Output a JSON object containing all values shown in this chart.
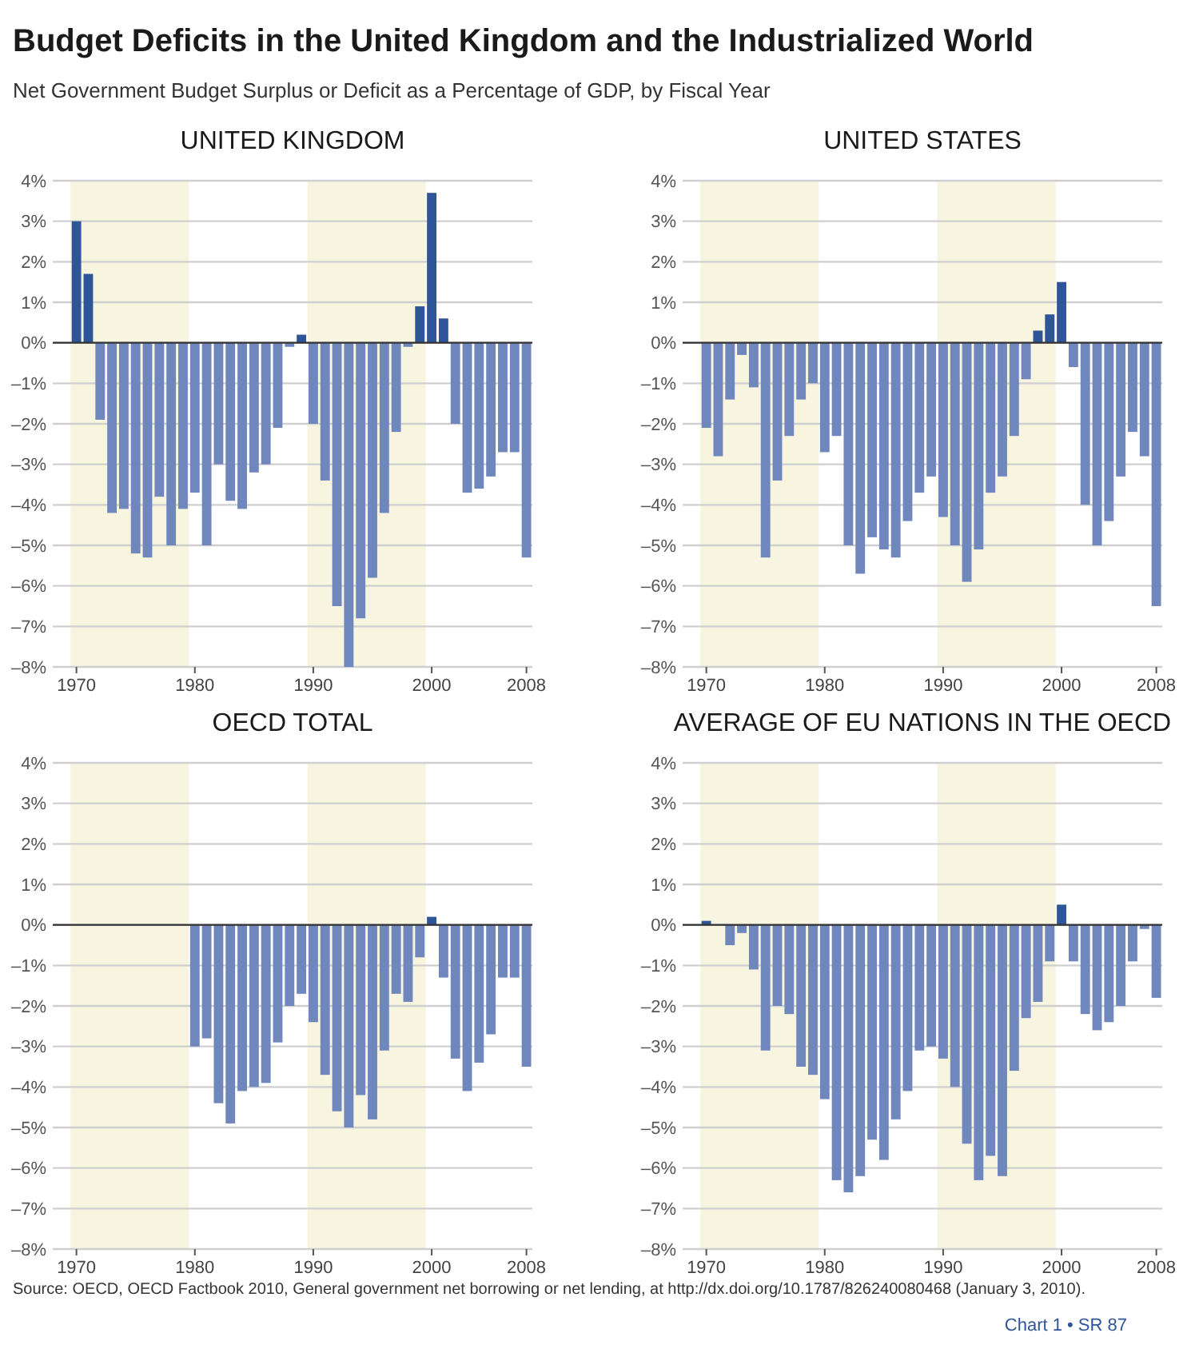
{
  "chart_data": [
    {
      "type": "other",
      "title": "Budget Deficits in the United Kingdom and the Industrialized World",
      "subtitle": "Net Government Budget Surplus or Deficit as a Percentage of GDP, by Fiscal Year",
      "annotations": [
        "Source: OECD, OECD Factbook 2010, General government net borrowing or net lending, at http://dx.doi.org/10.1787/826240080468 (January 3, 2010).",
        "Chart 1 • SR 87"
      ]
    },
    {
      "type": "bar",
      "title": "UNITED KINGDOM",
      "x": [
        1970,
        1971,
        1972,
        1973,
        1974,
        1975,
        1976,
        1977,
        1978,
        1979,
        1980,
        1981,
        1982,
        1983,
        1984,
        1985,
        1986,
        1987,
        1988,
        1989,
        1990,
        1991,
        1992,
        1993,
        1994,
        1995,
        1996,
        1997,
        1998,
        1999,
        2000,
        2001,
        2002,
        2003,
        2004,
        2005,
        2006,
        2007,
        2008
      ],
      "values": [
        3.0,
        1.7,
        -1.9,
        -4.2,
        -4.1,
        -5.2,
        -5.3,
        -3.8,
        -5.0,
        -4.1,
        -3.7,
        -5.0,
        -3.0,
        -3.9,
        -4.1,
        -3.2,
        -3.0,
        -2.1,
        -0.1,
        0.2,
        -2.0,
        -3.4,
        -6.5,
        -8.0,
        -6.8,
        -5.8,
        -4.2,
        -2.2,
        -0.1,
        0.9,
        3.7,
        0.6,
        -2.0,
        -3.7,
        -3.6,
        -3.3,
        -2.7,
        -2.7,
        -5.3
      ],
      "colors": [
        "#2d5597",
        "#2d5597",
        "#6f87bd",
        "#6f87bd",
        "#6f87bd",
        "#6f87bd",
        "#6f87bd",
        "#6f87bd",
        "#6f87bd",
        "#6f87bd",
        "#6f87bd",
        "#6f87bd",
        "#6f87bd",
        "#6f87bd",
        "#6f87bd",
        "#6f87bd",
        "#6f87bd",
        "#6f87bd",
        "#6f87bd",
        "#2d5597",
        "#6f87bd",
        "#6f87bd",
        "#6f87bd",
        "#6f87bd",
        "#6f87bd",
        "#6f87bd",
        "#6f87bd",
        "#6f87bd",
        "#6f87bd",
        "#2d5597",
        "#2d5597",
        "#2d5597",
        "#6f87bd",
        "#6f87bd",
        "#6f87bd",
        "#6f87bd",
        "#6f87bd",
        "#6f87bd",
        "#6f87bd"
      ],
      "xlim": [
        1968,
        2008.5
      ],
      "xticks": [
        1970,
        1980,
        1990,
        2000,
        2008
      ],
      "ylim": [
        -8,
        4
      ],
      "yticks": [
        {
          "value": 4,
          "label": "4%"
        },
        {
          "value": 3,
          "label": "3%"
        },
        {
          "value": 2,
          "label": "2%"
        },
        {
          "value": 1,
          "label": "1%"
        },
        {
          "value": 0,
          "label": "0%"
        },
        {
          "value": -1,
          "label": "–1%"
        },
        {
          "value": -2,
          "label": "–2%"
        },
        {
          "value": -3,
          "label": "–3%"
        },
        {
          "value": -4,
          "label": "–4%"
        },
        {
          "value": -5,
          "label": "–5%"
        },
        {
          "value": -6,
          "label": "–6%"
        },
        {
          "value": -7,
          "label": "–7%"
        },
        {
          "value": -8,
          "label": "–8%"
        }
      ],
      "bands": [
        {
          "axis": "x",
          "from": 1969.5,
          "to": 1979.5,
          "color": "#f7f4df"
        },
        {
          "axis": "x",
          "from": 1989.5,
          "to": 1999.5,
          "color": "#f7f4df"
        }
      ],
      "grid": "y"
    },
    {
      "type": "bar",
      "title": "UNITED STATES",
      "x": [
        1970,
        1971,
        1972,
        1973,
        1974,
        1975,
        1976,
        1977,
        1978,
        1979,
        1980,
        1981,
        1982,
        1983,
        1984,
        1985,
        1986,
        1987,
        1988,
        1989,
        1990,
        1991,
        1992,
        1993,
        1994,
        1995,
        1996,
        1997,
        1998,
        1999,
        2000,
        2001,
        2002,
        2003,
        2004,
        2005,
        2006,
        2007,
        2008
      ],
      "values": [
        -2.1,
        -2.8,
        -1.4,
        -0.3,
        -1.1,
        -5.3,
        -3.4,
        -2.3,
        -1.4,
        -1.0,
        -2.7,
        -2.3,
        -5.0,
        -5.7,
        -4.8,
        -5.1,
        -5.3,
        -4.4,
        -3.7,
        -3.3,
        -4.3,
        -5.0,
        -5.9,
        -5.1,
        -3.7,
        -3.3,
        -2.3,
        -0.9,
        0.3,
        0.7,
        1.5,
        -0.6,
        -4.0,
        -5.0,
        -4.4,
        -3.3,
        -2.2,
        -2.8,
        -6.5
      ],
      "colors": [
        "#6f87bd",
        "#6f87bd",
        "#6f87bd",
        "#6f87bd",
        "#6f87bd",
        "#6f87bd",
        "#6f87bd",
        "#6f87bd",
        "#6f87bd",
        "#6f87bd",
        "#6f87bd",
        "#6f87bd",
        "#6f87bd",
        "#6f87bd",
        "#6f87bd",
        "#6f87bd",
        "#6f87bd",
        "#6f87bd",
        "#6f87bd",
        "#6f87bd",
        "#6f87bd",
        "#6f87bd",
        "#6f87bd",
        "#6f87bd",
        "#6f87bd",
        "#6f87bd",
        "#6f87bd",
        "#6f87bd",
        "#2d5597",
        "#2d5597",
        "#2d5597",
        "#6f87bd",
        "#6f87bd",
        "#6f87bd",
        "#6f87bd",
        "#6f87bd",
        "#6f87bd",
        "#6f87bd",
        "#6f87bd"
      ],
      "xlim": [
        1968,
        2008.5
      ],
      "xticks": [
        1970,
        1980,
        1990,
        2000,
        2008
      ],
      "ylim": [
        -8,
        4
      ],
      "yticks": [
        {
          "value": 4,
          "label": "4%"
        },
        {
          "value": 3,
          "label": "3%"
        },
        {
          "value": 2,
          "label": "2%"
        },
        {
          "value": 1,
          "label": "1%"
        },
        {
          "value": 0,
          "label": "0%"
        },
        {
          "value": -1,
          "label": "–1%"
        },
        {
          "value": -2,
          "label": "–2%"
        },
        {
          "value": -3,
          "label": "–3%"
        },
        {
          "value": -4,
          "label": "–4%"
        },
        {
          "value": -5,
          "label": "–5%"
        },
        {
          "value": -6,
          "label": "–6%"
        },
        {
          "value": -7,
          "label": "–7%"
        },
        {
          "value": -8,
          "label": "–8%"
        }
      ],
      "bands": [
        {
          "axis": "x",
          "from": 1969.5,
          "to": 1979.5,
          "color": "#f7f4df"
        },
        {
          "axis": "x",
          "from": 1989.5,
          "to": 1999.5,
          "color": "#f7f4df"
        }
      ],
      "grid": "y"
    },
    {
      "type": "bar",
      "title": "OECD TOTAL",
      "x": [
        1980,
        1981,
        1982,
        1983,
        1984,
        1985,
        1986,
        1987,
        1988,
        1989,
        1990,
        1991,
        1992,
        1993,
        1994,
        1995,
        1996,
        1997,
        1998,
        1999,
        2000,
        2001,
        2002,
        2003,
        2004,
        2005,
        2006,
        2007,
        2008
      ],
      "values": [
        -3.0,
        -2.8,
        -4.4,
        -4.9,
        -4.1,
        -4.0,
        -3.9,
        -2.9,
        -2.0,
        -1.7,
        -2.4,
        -3.7,
        -4.6,
        -5.0,
        -4.2,
        -4.8,
        -3.1,
        -1.7,
        -1.9,
        -0.8,
        0.2,
        -1.3,
        -3.3,
        -4.1,
        -3.4,
        -2.7,
        -1.3,
        -1.3,
        -3.5
      ],
      "colors": [
        "#6f87bd",
        "#6f87bd",
        "#6f87bd",
        "#6f87bd",
        "#6f87bd",
        "#6f87bd",
        "#6f87bd",
        "#6f87bd",
        "#6f87bd",
        "#6f87bd",
        "#6f87bd",
        "#6f87bd",
        "#6f87bd",
        "#6f87bd",
        "#6f87bd",
        "#6f87bd",
        "#6f87bd",
        "#6f87bd",
        "#6f87bd",
        "#6f87bd",
        "#2d5597",
        "#6f87bd",
        "#6f87bd",
        "#6f87bd",
        "#6f87bd",
        "#6f87bd",
        "#6f87bd",
        "#6f87bd",
        "#6f87bd"
      ],
      "xlim": [
        1968,
        2008.5
      ],
      "xticks": [
        1970,
        1980,
        1990,
        2000,
        2008
      ],
      "ylim": [
        -8,
        4
      ],
      "yticks": [
        {
          "value": 4,
          "label": "4%"
        },
        {
          "value": 3,
          "label": "3%"
        },
        {
          "value": 2,
          "label": "2%"
        },
        {
          "value": 1,
          "label": "1%"
        },
        {
          "value": 0,
          "label": "0%"
        },
        {
          "value": -1,
          "label": "–1%"
        },
        {
          "value": -2,
          "label": "–2%"
        },
        {
          "value": -3,
          "label": "–3%"
        },
        {
          "value": -4,
          "label": "–4%"
        },
        {
          "value": -5,
          "label": "–5%"
        },
        {
          "value": -6,
          "label": "–6%"
        },
        {
          "value": -7,
          "label": "–7%"
        },
        {
          "value": -8,
          "label": "–8%"
        }
      ],
      "bands": [
        {
          "axis": "x",
          "from": 1969.5,
          "to": 1979.5,
          "color": "#f7f4df"
        },
        {
          "axis": "x",
          "from": 1989.5,
          "to": 1999.5,
          "color": "#f7f4df"
        }
      ],
      "grid": "y"
    },
    {
      "type": "bar",
      "title": "AVERAGE OF EU NATIONS IN THE OECD",
      "x": [
        1970,
        1972,
        1973,
        1974,
        1975,
        1976,
        1977,
        1978,
        1979,
        1980,
        1981,
        1982,
        1983,
        1984,
        1985,
        1986,
        1987,
        1988,
        1989,
        1990,
        1991,
        1992,
        1993,
        1994,
        1995,
        1996,
        1997,
        1998,
        1999,
        2000,
        2001,
        2002,
        2003,
        2004,
        2005,
        2006,
        2007,
        2008
      ],
      "values": [
        0.1,
        -0.5,
        -0.2,
        -1.1,
        -3.1,
        -2.0,
        -2.2,
        -3.5,
        -3.7,
        -4.3,
        -6.3,
        -6.6,
        -6.2,
        -5.3,
        -5.8,
        -4.8,
        -4.1,
        -3.1,
        -3.0,
        -3.3,
        -4.0,
        -5.4,
        -6.3,
        -5.7,
        -6.2,
        -3.6,
        -2.3,
        -1.9,
        -0.9,
        0.5,
        -0.9,
        -2.2,
        -2.6,
        -2.4,
        -2.0,
        -0.9,
        -0.1,
        -1.8
      ],
      "colors": [
        "#2d5597",
        "#6f87bd",
        "#6f87bd",
        "#6f87bd",
        "#6f87bd",
        "#6f87bd",
        "#6f87bd",
        "#6f87bd",
        "#6f87bd",
        "#6f87bd",
        "#6f87bd",
        "#6f87bd",
        "#6f87bd",
        "#6f87bd",
        "#6f87bd",
        "#6f87bd",
        "#6f87bd",
        "#6f87bd",
        "#6f87bd",
        "#6f87bd",
        "#6f87bd",
        "#6f87bd",
        "#6f87bd",
        "#6f87bd",
        "#6f87bd",
        "#6f87bd",
        "#6f87bd",
        "#6f87bd",
        "#6f87bd",
        "#2d5597",
        "#6f87bd",
        "#6f87bd",
        "#6f87bd",
        "#6f87bd",
        "#6f87bd",
        "#6f87bd",
        "#6f87bd",
        "#6f87bd"
      ],
      "xlim": [
        1968,
        2008.5
      ],
      "xticks": [
        1970,
        1980,
        1990,
        2000,
        2008
      ],
      "ylim": [
        -8,
        4
      ],
      "yticks": [
        {
          "value": 4,
          "label": "4%"
        },
        {
          "value": 3,
          "label": "3%"
        },
        {
          "value": 2,
          "label": "2%"
        },
        {
          "value": 1,
          "label": "1%"
        },
        {
          "value": 0,
          "label": "0%"
        },
        {
          "value": -1,
          "label": "–1%"
        },
        {
          "value": -2,
          "label": "–2%"
        },
        {
          "value": -3,
          "label": "–3%"
        },
        {
          "value": -4,
          "label": "–4%"
        },
        {
          "value": -5,
          "label": "–5%"
        },
        {
          "value": -6,
          "label": "–6%"
        },
        {
          "value": -7,
          "label": "–7%"
        },
        {
          "value": -8,
          "label": "–8%"
        }
      ],
      "bands": [
        {
          "axis": "x",
          "from": 1969.5,
          "to": 1979.5,
          "color": "#f7f4df"
        },
        {
          "axis": "x",
          "from": 1989.5,
          "to": 1999.5,
          "color": "#f7f4df"
        }
      ],
      "grid": "y"
    }
  ]
}
